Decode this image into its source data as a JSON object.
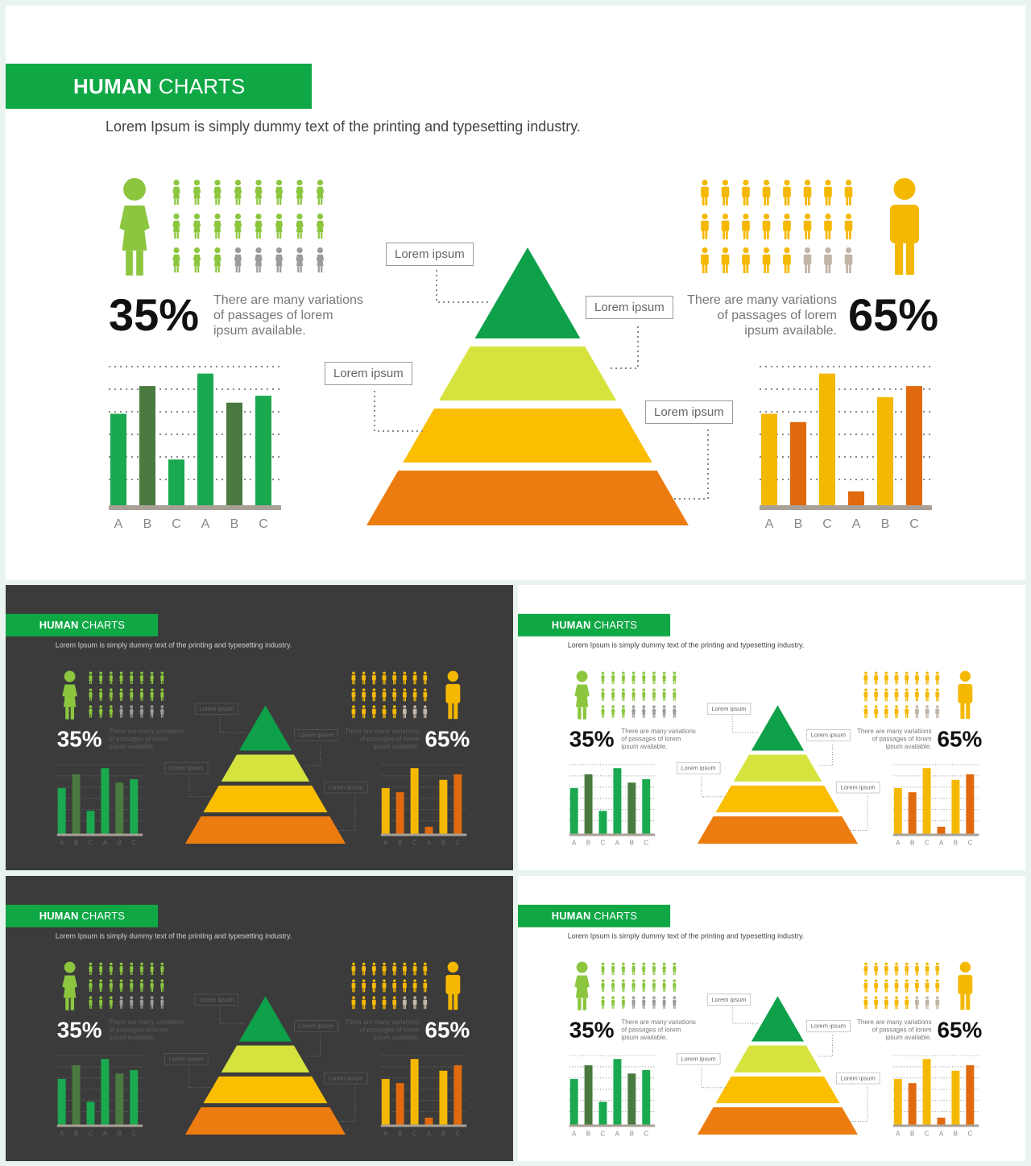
{
  "header": {
    "title_bold": "HUMAN",
    "title_light": "CHARTS",
    "subtitle": "Lorem Ipsum is simply dummy text of the printing and typesetting industry."
  },
  "left_panel": {
    "percent": "35%",
    "description_lines": [
      "There are many variations",
      "of passages of lorem",
      "ipsum available."
    ],
    "icon": "female-person-icon",
    "filled_of_total": [
      19,
      24
    ],
    "colors": {
      "filled": "#8cc63f",
      "empty": "#9b9b9b",
      "big": "#8cc63f"
    }
  },
  "right_panel": {
    "percent": "65%",
    "description_lines": [
      "There are many variations",
      "of passages of lorem",
      "ipsum available."
    ],
    "icon": "male-person-icon",
    "filled_of_total": [
      21,
      24
    ],
    "colors": {
      "filled": "#f5b800",
      "empty": "#c2b5a6",
      "big": "#f5b800"
    }
  },
  "pyramid": {
    "callouts": [
      "Lorem ipsum",
      "Lorem ipsum",
      "Lorem ipsum",
      "Lorem ipsum"
    ],
    "colors": [
      "#0fa04a",
      "#d6e33f",
      "#fbbe00",
      "#ec7c0f"
    ]
  },
  "chart_data": [
    {
      "type": "bar",
      "categories": [
        "A",
        "B",
        "C",
        "A",
        "B",
        "C"
      ],
      "values": [
        66,
        86,
        33,
        95,
        74,
        79
      ],
      "ylim": [
        0,
        100
      ],
      "colors": [
        "#1aa94f",
        "#4a7a3f",
        "#1aa94f",
        "#1aa94f",
        "#4a7a3f",
        "#1aa94f"
      ],
      "grid": true
    },
    {
      "type": "bar",
      "categories": [
        "A",
        "B",
        "C",
        "A",
        "B",
        "C"
      ],
      "values": [
        66,
        60,
        95,
        10,
        78,
        86
      ],
      "ylim": [
        0,
        100
      ],
      "colors": [
        "#f5b800",
        "#e06a0d",
        "#f5b800",
        "#e06a0d",
        "#f5b800",
        "#e06a0d"
      ],
      "grid": true
    }
  ],
  "slides": [
    {
      "theme": "light"
    },
    {
      "theme": "dark"
    },
    {
      "theme": "light"
    },
    {
      "theme": "dark"
    },
    {
      "theme": "light"
    }
  ]
}
